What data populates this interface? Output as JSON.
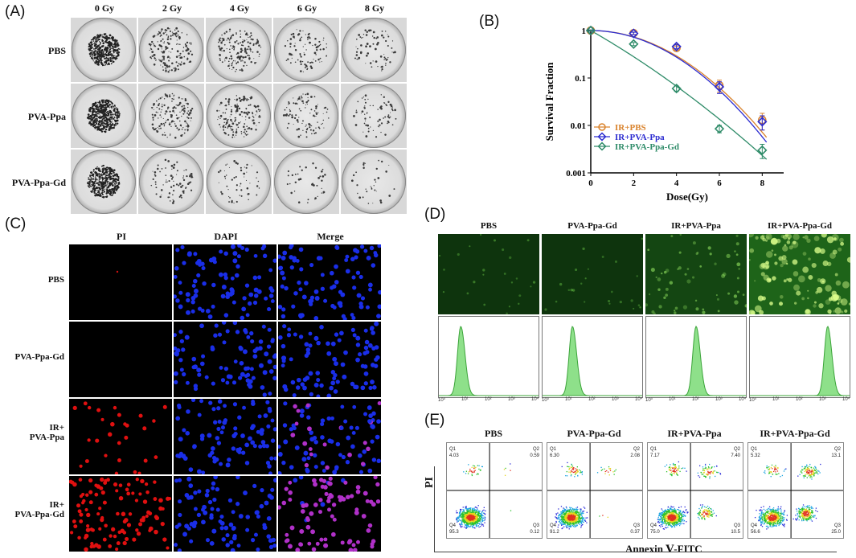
{
  "panelA": {
    "label": "(A)",
    "doses": [
      "0 Gy",
      "2 Gy",
      "4 Gy",
      "6 Gy",
      "8 Gy"
    ],
    "rows": [
      "PBS",
      "PVA-Ppa",
      "PVA-Ppa-Gd"
    ],
    "colony_density": [
      [
        1.0,
        0.35,
        0.3,
        0.15,
        0.1
      ],
      [
        1.0,
        0.3,
        0.35,
        0.18,
        0.1
      ],
      [
        1.0,
        0.12,
        0.06,
        0.02,
        0.01
      ]
    ]
  },
  "panelB": {
    "label": "(B)",
    "chart_data": {
      "type": "scatter",
      "xlabel": "Dose(Gy)",
      "ylabel": "Survival Fraction",
      "x_ticks": [
        "0",
        "2",
        "4",
        "6",
        "8"
      ],
      "y_ticks": [
        "1",
        "0.1",
        "0.01",
        "0.001"
      ],
      "xlim": [
        0,
        9
      ],
      "ylim": [
        0.001,
        1
      ],
      "y_scale": "log",
      "legend_position": "center-left",
      "x": [
        0,
        2,
        4,
        6,
        8
      ],
      "series": [
        {
          "name": "IR+PBS",
          "marker": "circle",
          "color": "#d9822b",
          "values": [
            1.0,
            0.88,
            0.43,
            0.07,
            0.013
          ],
          "errors": [
            0.03,
            0.05,
            0.04,
            0.02,
            0.005
          ]
        },
        {
          "name": "IR+PVA-Ppa",
          "marker": "diamond",
          "color": "#2b2bd0",
          "values": [
            1.0,
            0.87,
            0.46,
            0.065,
            0.012
          ],
          "errors": [
            0.03,
            0.05,
            0.04,
            0.018,
            0.004
          ]
        },
        {
          "name": "IR+PVA-Ppa-Gd",
          "marker": "diamond",
          "color": "#2e8b68",
          "values": [
            1.0,
            0.52,
            0.06,
            0.0085,
            0.003
          ],
          "errors": [
            0.03,
            0.04,
            0.008,
            0.0015,
            0.001
          ]
        }
      ]
    }
  },
  "panelC": {
    "label": "(C)",
    "columns": [
      "PI",
      "DAPI",
      "Merge"
    ],
    "rows": [
      "PBS",
      "PVA-Ppa-Gd",
      "IR+\nPVA-Ppa",
      "IR+\nPVA-Ppa-Gd"
    ],
    "pi_density": [
      0.0,
      0.0,
      0.25,
      1.0
    ]
  },
  "panelD": {
    "label": "(D)",
    "columns": [
      "PBS",
      "PVA-Ppa-Gd",
      "IR+PVA-Ppa",
      "IR+PVA-Ppa-Gd"
    ],
    "brightness": [
      0.2,
      0.2,
      0.5,
      1.0
    ],
    "histogram_peaks": [
      0.22,
      0.3,
      0.5,
      0.78
    ],
    "axis_ticks": [
      "10⁰",
      "10¹",
      "10²",
      "10³",
      "10⁴"
    ]
  },
  "panelE": {
    "label": "(E)",
    "columns": [
      "PBS",
      "PVA-Ppa-Gd",
      "IR+PVA-Ppa",
      "IR+PVA-Ppa-Gd"
    ],
    "quadrants": [
      {
        "Q1": "4.03",
        "Q2": "0.59",
        "Q3": "0.12",
        "Q4": "95.3"
      },
      {
        "Q1": "6.30",
        "Q2": "2.08",
        "Q3": "0.37",
        "Q4": "91.2"
      },
      {
        "Q1": "7.17",
        "Q2": "7.40",
        "Q3": "10.5",
        "Q4": "75.0"
      },
      {
        "Q1": "5.32",
        "Q2": "13.1",
        "Q3": "25.0",
        "Q4": "56.6"
      }
    ],
    "y_axis_label": "PI",
    "x_axis_label": "Annexin Ⅴ-FITC"
  }
}
